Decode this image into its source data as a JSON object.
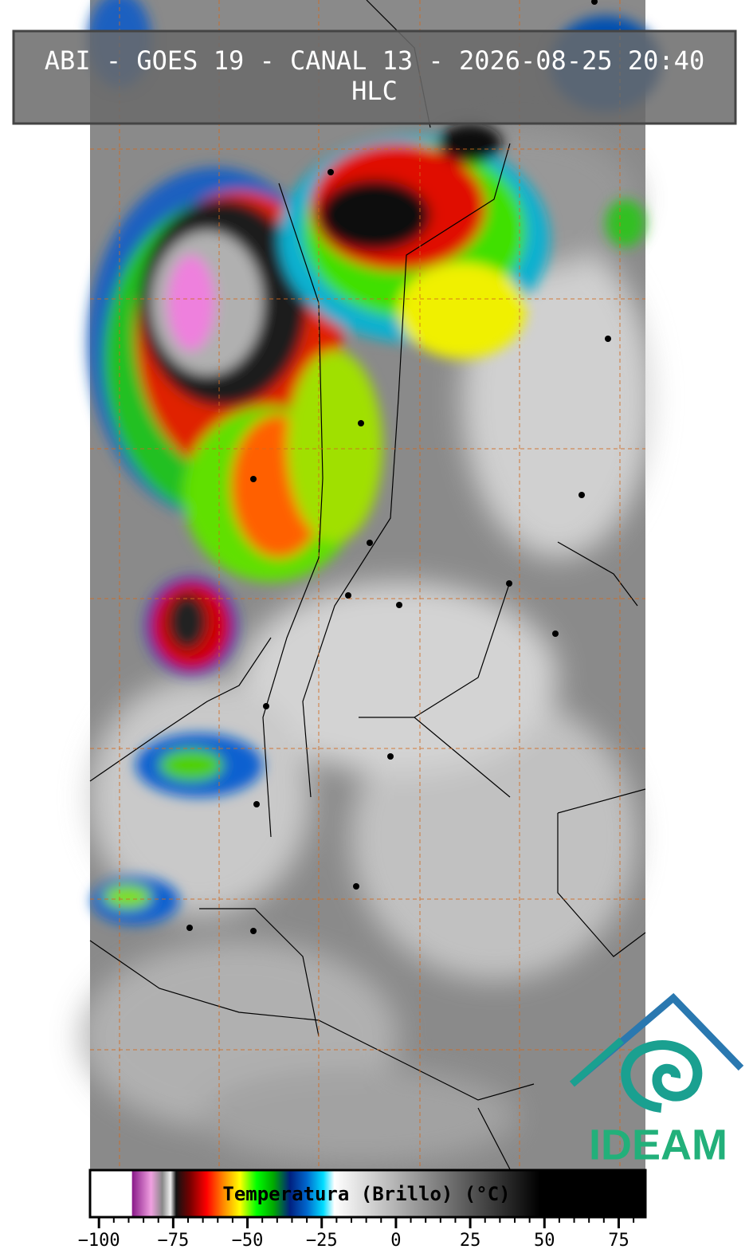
{
  "header": {
    "title": "ABI - GOES 19 - CANAL 13 - 2026-08-25 20:40",
    "subtitle": "HLC"
  },
  "colorbar": {
    "label": "Temperatura (Brillo) (°C)",
    "lim": [
      -103,
      84
    ],
    "ticks": [
      {
        "value": -100,
        "label": "−100"
      },
      {
        "value": -75,
        "label": "−75"
      },
      {
        "value": -50,
        "label": "−50"
      },
      {
        "value": -25,
        "label": "−25"
      },
      0,
      25,
      50,
      75
    ]
  },
  "logo": {
    "text": "IDEAM"
  }
}
